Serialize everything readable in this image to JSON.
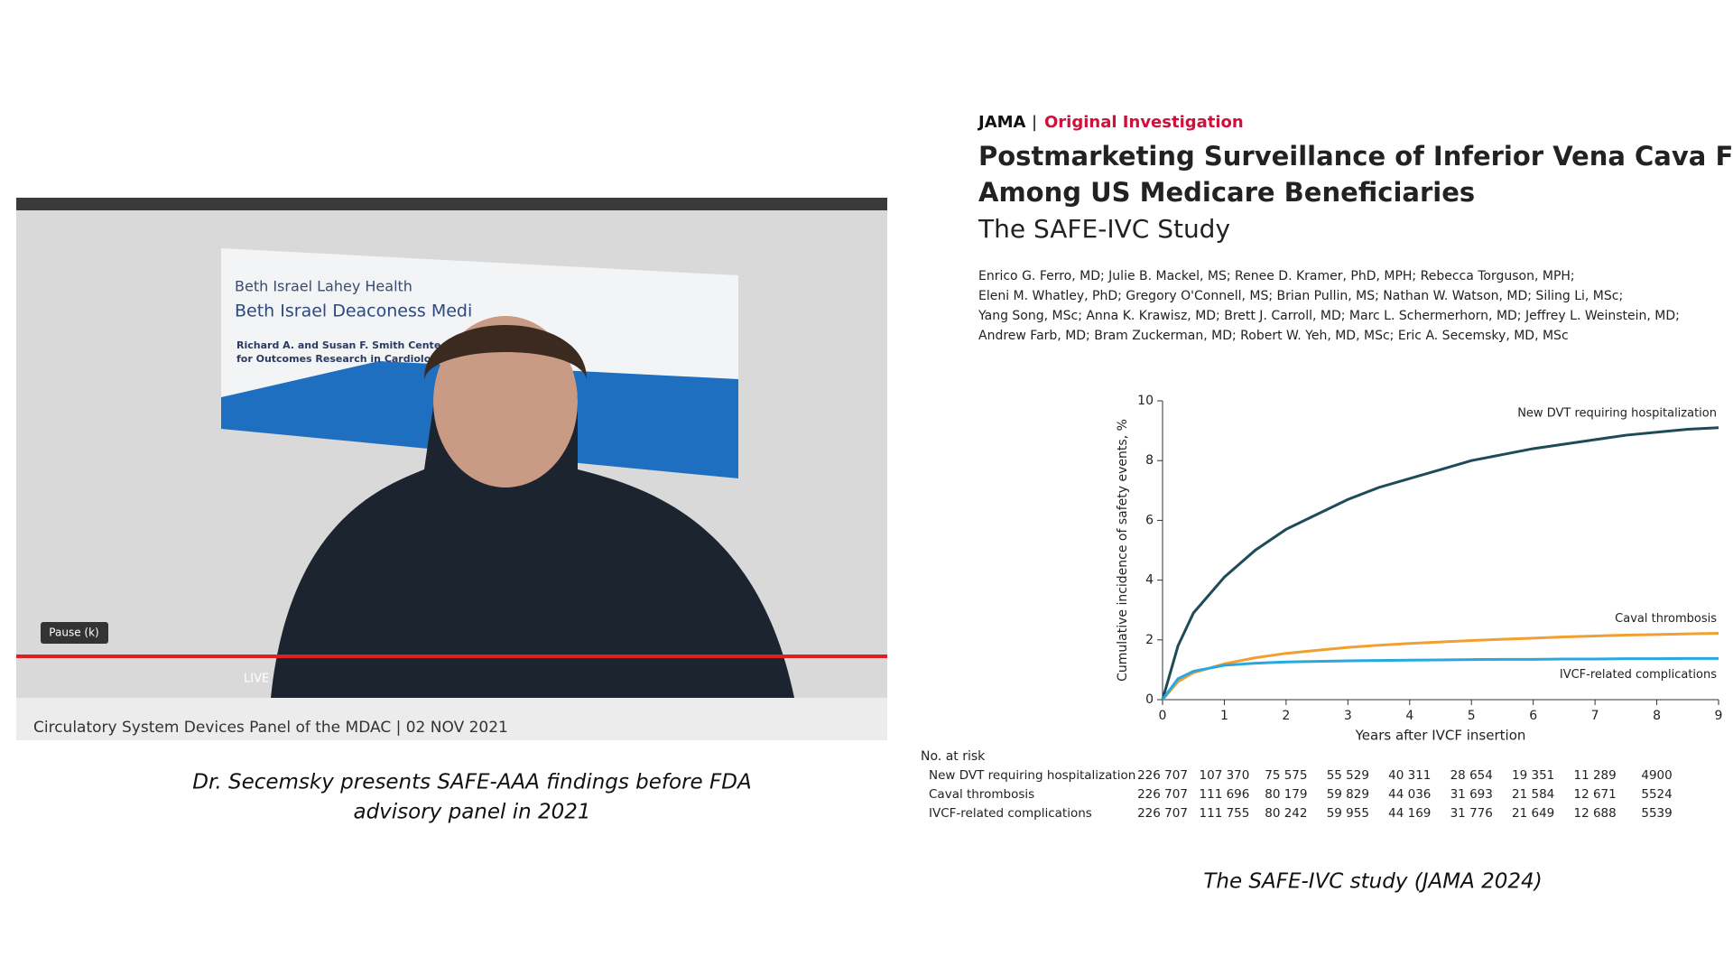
{
  "video": {
    "logo_line1": "Beth Israel Lahey Health",
    "logo_line2": "Beth Israel Deaconess Medi",
    "center_line1": "Richard A. and Susan F. Smith Cente",
    "center_line2": "for Outcomes Research in Cardiolog",
    "tooltip": "Pause (k)",
    "live": "LIVE",
    "caption_bar": "Circulatory System Devices Panel of the MDAC | 02 NOV 2021"
  },
  "left_caption": [
    "Dr. Secemsky presents SAFE-AAA findings before FDA",
    "advisory panel in 2021"
  ],
  "article": {
    "journal": "JAMA",
    "section": "Original Investigation",
    "title": [
      "Postmarketing Surveillance of Inferior Vena Cava Filters",
      "Among US Medicare Beneficiaries"
    ],
    "subtitle": "The SAFE-IVC Study",
    "authors": [
      "Enrico G. Ferro, MD; Julie B. Mackel, MS; Renee D. Kramer, PhD, MPH; Rebecca Torguson, MPH;",
      "Eleni M. Whatley, PhD; Gregory O'Connell, MS; Brian Pullin, MS; Nathan W. Watson, MD; Siling Li, MSc;",
      "Yang Song, MSc; Anna K. Krawisz, MD; Brett J. Carroll, MD; Marc L. Schermerhorn, MD; Jeffrey L. Weinstein, MD;",
      "Andrew Farb, MD; Bram Zuckerman, MD; Robert W. Yeh, MD, MSc; Eric A. Secemsky, MD, MSc"
    ]
  },
  "chart_data": {
    "type": "line",
    "x_label": "Years after IVCF insertion",
    "y_label": "Cumulative incidence of safety events, %",
    "x": [
      0,
      0.25,
      0.5,
      1,
      1.5,
      2,
      2.5,
      3,
      3.5,
      4,
      4.5,
      5,
      5.5,
      6,
      6.5,
      7,
      7.5,
      8,
      8.5,
      9
    ],
    "series": [
      {
        "name": "New DVT requiring hospitalization",
        "color": "#1f4a57",
        "values": [
          0,
          1.8,
          2.9,
          4.1,
          5.0,
          5.7,
          6.2,
          6.7,
          7.1,
          7.4,
          7.7,
          8.0,
          8.2,
          8.4,
          8.55,
          8.7,
          8.85,
          8.95,
          9.05,
          9.1
        ]
      },
      {
        "name": "Caval thrombosis",
        "color": "#f0a030",
        "values": [
          0,
          0.6,
          0.9,
          1.2,
          1.4,
          1.55,
          1.65,
          1.75,
          1.82,
          1.88,
          1.93,
          1.98,
          2.02,
          2.06,
          2.1,
          2.13,
          2.16,
          2.18,
          2.2,
          2.22
        ]
      },
      {
        "name": "IVCF-related complications",
        "color": "#29a8e0",
        "values": [
          0,
          0.7,
          0.95,
          1.15,
          1.22,
          1.26,
          1.28,
          1.3,
          1.31,
          1.32,
          1.33,
          1.34,
          1.35,
          1.35,
          1.36,
          1.36,
          1.37,
          1.37,
          1.38,
          1.38
        ]
      }
    ],
    "xlim": [
      0,
      9
    ],
    "ylim": [
      0,
      10
    ],
    "xticks": [
      0,
      1,
      2,
      3,
      4,
      5,
      6,
      7,
      8,
      9
    ],
    "yticks": [
      0,
      2,
      4,
      6,
      8,
      10
    ],
    "risk_table": {
      "title": "No. at risk",
      "rows": [
        {
          "name": "New DVT requiring hospitalization",
          "values": [
            "226 707",
            "107 370",
            "75 575",
            "55 529",
            "40 311",
            "28 654",
            "19 351",
            "11 289",
            "4900"
          ]
        },
        {
          "name": "Caval thrombosis",
          "values": [
            "226 707",
            "111 696",
            "80 179",
            "59 829",
            "44 036",
            "31 693",
            "21 584",
            "12 671",
            "5524"
          ]
        },
        {
          "name": "IVCF-related complications",
          "values": [
            "226 707",
            "111 755",
            "80 242",
            "59 955",
            "44 169",
            "31 776",
            "21 649",
            "12 688",
            "5539"
          ]
        }
      ]
    }
  },
  "right_caption": "The SAFE-IVC study (JAMA 2024)"
}
